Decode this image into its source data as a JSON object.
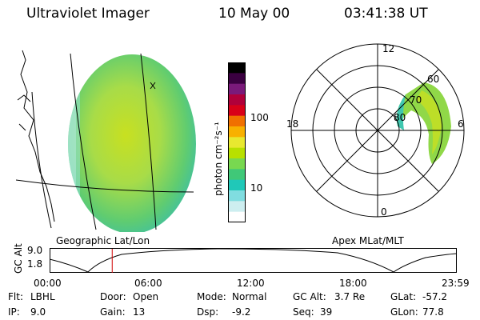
{
  "header": {
    "title": "Ultraviolet Imager",
    "date": "10 May 00",
    "time": "03:41:38 UT"
  },
  "colorbar": {
    "unit_label": "photon cm⁻²s⁻¹",
    "ticks": [
      "100",
      "10"
    ],
    "colors": [
      "#000000",
      "#3a0040",
      "#7a1a7a",
      "#b0003a",
      "#d80018",
      "#f07000",
      "#f8b000",
      "#e8e830",
      "#b8e000",
      "#78d850",
      "#40c878",
      "#20c8b8",
      "#80dde0",
      "#cdeef0",
      "#ffffff"
    ]
  },
  "geo_panel": {
    "label": "Geographic Lat/Lon"
  },
  "polar_panel": {
    "label": "Apex MLat/MLT",
    "mlt_labels": {
      "top": "12",
      "left": "18",
      "right": "6",
      "bottom": "0"
    },
    "lat_labels": [
      "60",
      "70",
      "80"
    ]
  },
  "altitude_chart": {
    "ylabel": "GC Alt",
    "yticks": [
      "9.0",
      "1.8"
    ],
    "xticks": [
      "00:00",
      "06:00",
      "12:00",
      "18:00",
      "23:59"
    ],
    "current_time_marker_hours": 3.69
  },
  "footer": {
    "row1": {
      "flt_label": "Flt:",
      "flt_value": "LBHL",
      "door_label": "Door:",
      "door_value": "Open",
      "mode_label": "Mode:",
      "mode_value": "Normal",
      "gcalt_label": "GC Alt:",
      "gcalt_value": "3.7 Re",
      "glat_label": "GLat:",
      "glat_value": "-57.2"
    },
    "row2": {
      "ip_label": "IP:",
      "ip_value": "9.0",
      "gain_label": "Gain:",
      "gain_value": "13",
      "dsp_label": "Dsp:",
      "dsp_value": "-9.2",
      "seq_label": "Seq:",
      "seq_value": "39",
      "glon_label": "GLon:",
      "glon_value": "77.8"
    }
  }
}
